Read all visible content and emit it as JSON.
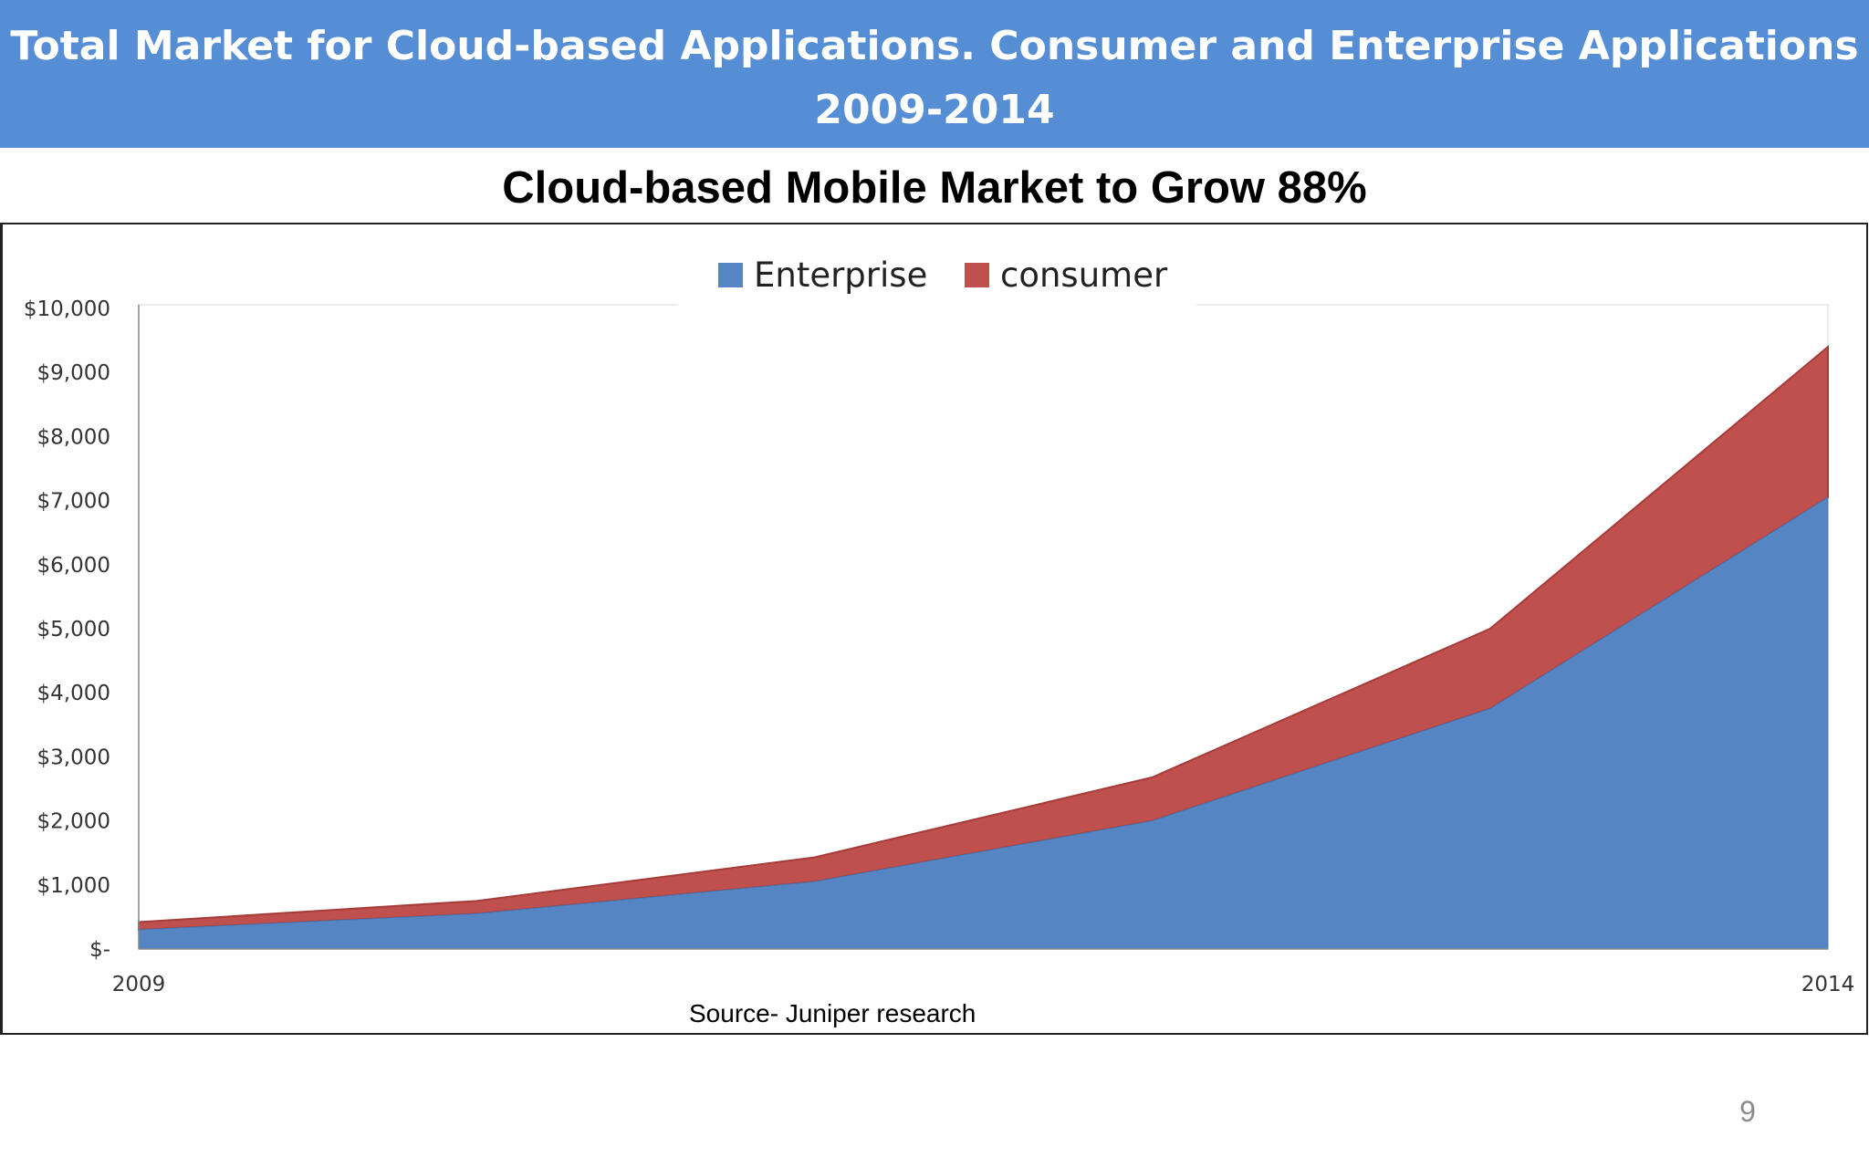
{
  "slide": {
    "title_line1": "Total Market for Cloud-based Applications. Consumer and Enterprise Applications",
    "title_line2": "2009-2014",
    "subtitle": "Cloud-based Mobile Market to Grow 88%",
    "source": "Source- Juniper research",
    "page_number": "9"
  },
  "colors": {
    "title_bar": "#558ed5",
    "enterprise": "#5585c3",
    "consumer": "#c0504d",
    "consumer_edge": "#a63c3a"
  },
  "chart_data": {
    "type": "area",
    "stacked": true,
    "x": [
      2009,
      2010,
      2011,
      2012,
      2013,
      2014
    ],
    "x_tick_labels": [
      "2009",
      "",
      "",
      "",
      "",
      "2014"
    ],
    "series": [
      {
        "name": "Enterprise",
        "values": [
          300,
          550,
          1050,
          2000,
          3750,
          7050
        ]
      },
      {
        "name": "consumer",
        "values": [
          120,
          200,
          380,
          680,
          1250,
          2350
        ]
      }
    ],
    "totals": [
      420,
      750,
      1430,
      2680,
      5000,
      9400
    ],
    "ylim": [
      0,
      10000
    ],
    "y_ticks": [
      0,
      1000,
      2000,
      3000,
      4000,
      5000,
      6000,
      7000,
      8000,
      9000,
      10000
    ],
    "y_tick_labels": [
      "$-",
      "$1,000",
      "$2,000",
      "$3,000",
      "$4,000",
      "$5,000",
      "$6,000",
      "$7,000",
      "$8,000",
      "$9,000",
      "$10,000"
    ],
    "legend": [
      "Enterprise",
      "consumer"
    ],
    "legend_position": "top",
    "title": "",
    "xlabel": "",
    "ylabel": "",
    "grid": false
  }
}
